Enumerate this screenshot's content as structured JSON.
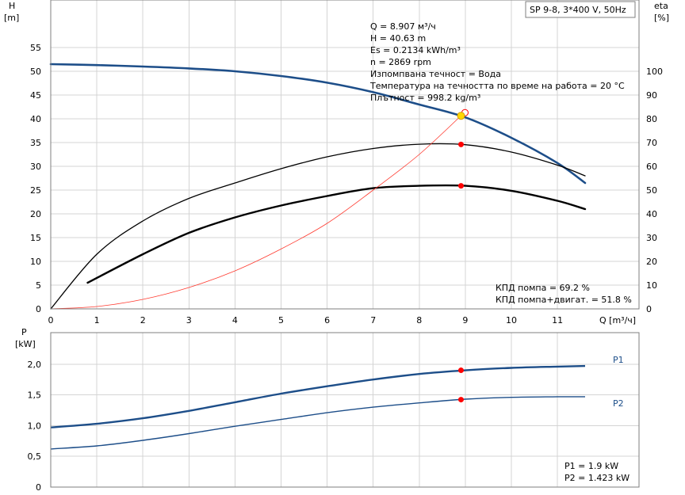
{
  "title_box": "SP 9-8, 3*400 V, 50Hz",
  "top_chart": {
    "y_left_label": [
      "H",
      "[m]"
    ],
    "y_right_label": [
      "eta",
      "[%]"
    ],
    "x_label": "Q [m³/ч]",
    "x_ticks": [
      "0",
      "1",
      "2",
      "3",
      "4",
      "5",
      "6",
      "7",
      "8",
      "9",
      "10",
      "11"
    ],
    "y_left_ticks": [
      "0",
      "5",
      "10",
      "15",
      "20",
      "25",
      "30",
      "35",
      "40",
      "45",
      "50",
      "55"
    ],
    "y_right_ticks": [
      "0",
      "10",
      "20",
      "30",
      "40",
      "50",
      "60",
      "70",
      "80",
      "90",
      "100"
    ],
    "info_lines": [
      "Q = 8.907 м³/ч",
      "H = 40.63 m",
      "Es = 0.2134 kWh/m³",
      "n = 2869 rpm",
      "Изпомпвана течност = Вода",
      "Температура на течността по време на работа = 20 °C",
      "Плътност = 998.2 kg/m³"
    ],
    "eff_lines": [
      "КПД помпа = 69.2 %",
      "КПД помпа+двигат. = 51.8 %"
    ]
  },
  "bottom_chart": {
    "y_label": [
      "P",
      "[kW]"
    ],
    "y_ticks": [
      "0",
      "0,5",
      "1,0",
      "1,5",
      "2,0"
    ],
    "series_labels": [
      "P1",
      "P2"
    ],
    "power_lines": [
      "P1 = 1.9 kW",
      "P2 = 1.423 kW"
    ]
  },
  "colors": {
    "head_curve": "#1d4e89",
    "eff_curve": "#000000",
    "system_curve": "#ff3b30",
    "power_curve": "#1d4e89",
    "op_point": "#ff0000",
    "duty_point": "#ffd800"
  },
  "chart_data": [
    {
      "type": "line",
      "axis": "top",
      "xlim": [
        0,
        12
      ],
      "ylim_left": [
        0,
        60
      ],
      "ylim_right": [
        0,
        120
      ],
      "operating_point": {
        "Q": 8.907,
        "H": 40.63,
        "eta_pump": 69.2,
        "eta_total": 51.8
      },
      "series": [
        {
          "axis": "left",
          "key": "head",
          "x": [
            0,
            1,
            2,
            3,
            4,
            5,
            6,
            7,
            8,
            9,
            10,
            11,
            11.6
          ],
          "y": [
            51.5,
            51.3,
            51.0,
            50.6,
            50.0,
            49.0,
            47.6,
            45.6,
            43.0,
            40.3,
            36.0,
            30.7,
            26.5
          ]
        },
        {
          "axis": "right",
          "key": "eta_pump",
          "x": [
            0,
            1,
            2,
            3,
            4,
            5,
            6,
            7,
            8,
            9,
            10,
            11,
            11.6
          ],
          "y": [
            0,
            23,
            37,
            46.5,
            53,
            59,
            64,
            67.5,
            69.3,
            69.1,
            66,
            60.5,
            56
          ]
        },
        {
          "axis": "right",
          "key": "eta_total",
          "x": [
            0.8,
            2,
            3,
            4,
            5,
            6,
            7,
            8,
            9,
            10,
            11,
            11.6
          ],
          "y": [
            11,
            23,
            32,
            38.5,
            43.5,
            47.5,
            50.8,
            51.8,
            51.8,
            49.7,
            45.5,
            42
          ]
        },
        {
          "axis": "left",
          "key": "system",
          "x": [
            0,
            1,
            2,
            3,
            4,
            5,
            6,
            7,
            8,
            9.0
          ],
          "y": [
            0,
            0.5,
            2,
            4.5,
            8,
            12.6,
            18,
            25,
            32.5,
            41.5
          ]
        }
      ]
    },
    {
      "type": "line",
      "axis": "bottom",
      "xlim": [
        0,
        12
      ],
      "ylim": [
        0,
        2.5
      ],
      "operating_point": {
        "Q": 8.907,
        "P1": 1.9,
        "P2": 1.423
      },
      "series": [
        {
          "name": "P1",
          "x": [
            0,
            1,
            2,
            3,
            4,
            5,
            6,
            7,
            8,
            9,
            10,
            11,
            11.6
          ],
          "y": [
            0.97,
            1.03,
            1.12,
            1.24,
            1.38,
            1.52,
            1.64,
            1.75,
            1.84,
            1.9,
            1.94,
            1.96,
            1.97
          ]
        },
        {
          "name": "P2",
          "x": [
            0,
            1,
            2,
            3,
            4,
            5,
            6,
            7,
            8,
            9,
            10,
            11,
            11.6
          ],
          "y": [
            0.62,
            0.67,
            0.76,
            0.87,
            0.99,
            1.1,
            1.21,
            1.3,
            1.37,
            1.43,
            1.46,
            1.47,
            1.47
          ]
        }
      ]
    }
  ]
}
